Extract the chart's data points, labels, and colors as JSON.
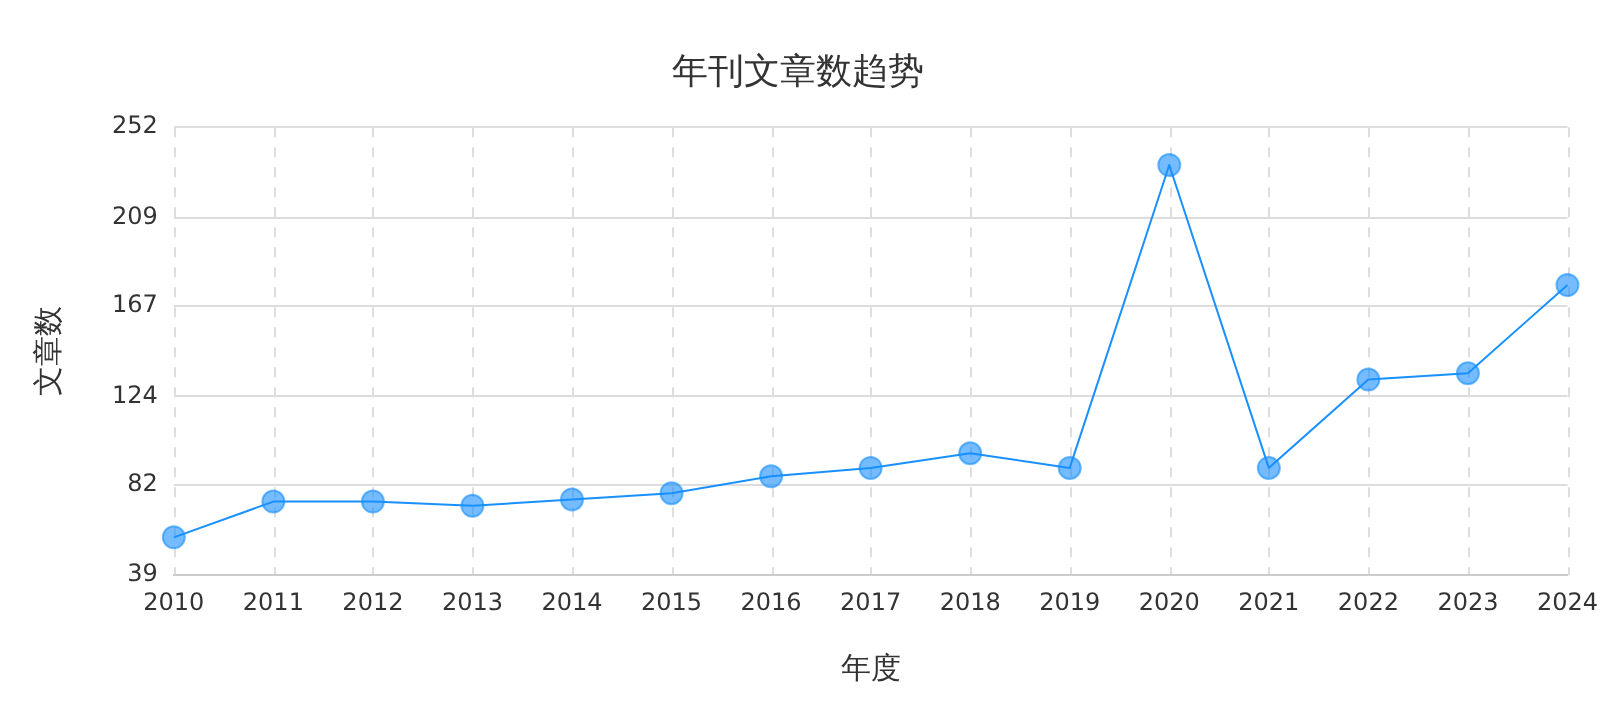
{
  "chart_data": {
    "type": "line",
    "title": "年刊文章数趋势",
    "xlabel": "年度",
    "ylabel": "文章数",
    "categories": [
      "2010",
      "2011",
      "2012",
      "2013",
      "2014",
      "2015",
      "2016",
      "2017",
      "2018",
      "2019",
      "2020",
      "2021",
      "2022",
      "2023",
      "2024"
    ],
    "series": [
      {
        "color": "#1890ff",
        "values": [
          57,
          74,
          74,
          72,
          75,
          78,
          86,
          90,
          97,
          90,
          234,
          90,
          132,
          135,
          177
        ]
      }
    ],
    "ylim": [
      39,
      252
    ],
    "yticks": [
      39,
      82,
      124,
      167,
      209,
      252
    ],
    "grid": true,
    "legend": false,
    "marker": "circle",
    "line_style": "solid"
  }
}
